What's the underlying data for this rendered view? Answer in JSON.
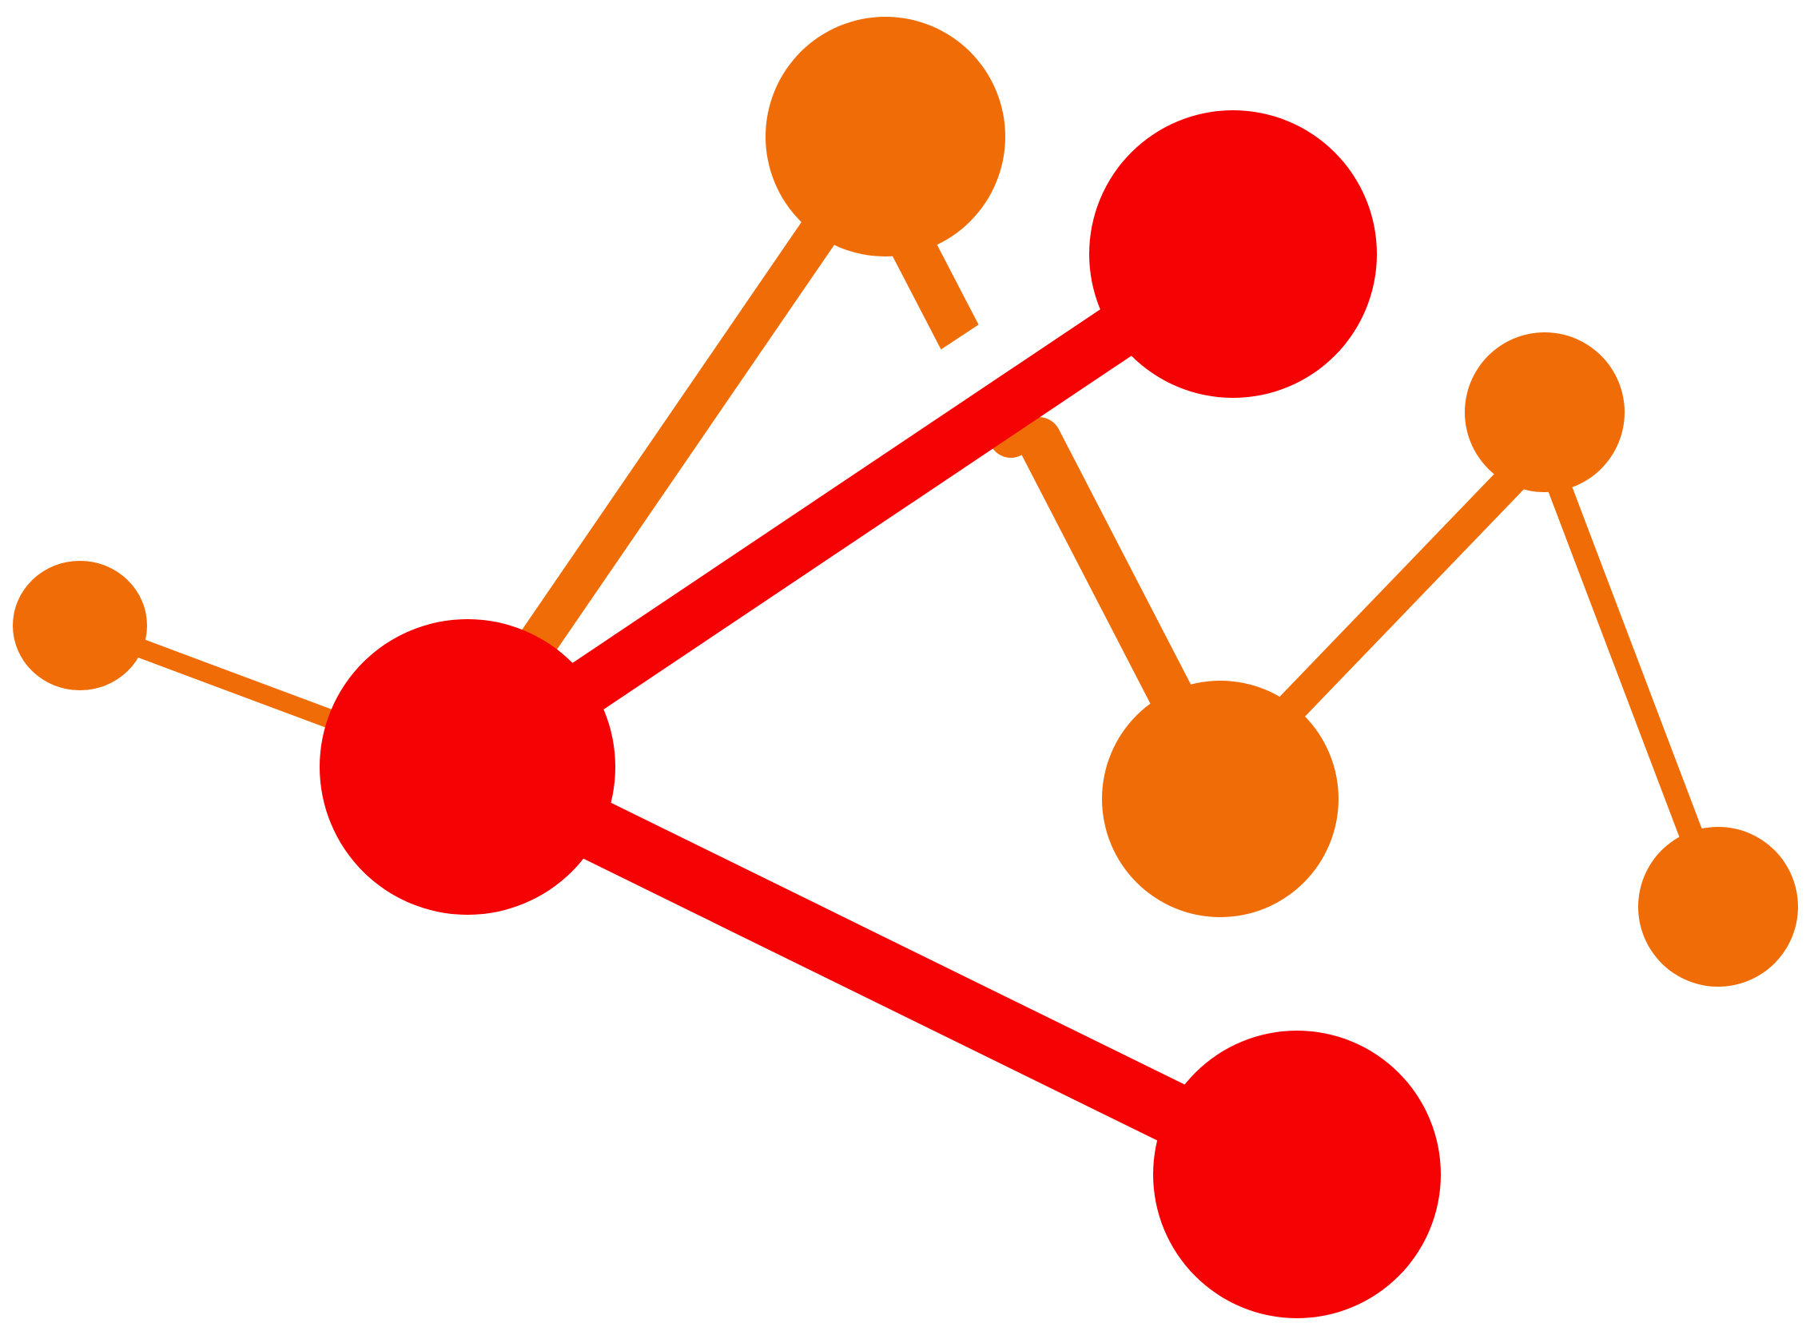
{
  "logo": {
    "name": "network-graph-logo",
    "colors": {
      "background": "#ffffff",
      "secondary": "#f06c06",
      "primary": "#f50204"
    }
  }
}
